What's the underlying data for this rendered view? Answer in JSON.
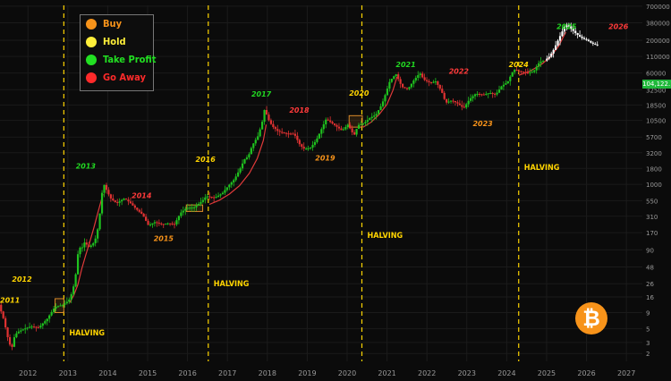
{
  "chart_data": {
    "type": "candlestick",
    "scale": "log",
    "xlim": [
      2011.3,
      2027.4
    ],
    "ylim": [
      1.5,
      720000
    ],
    "x_ticks": [
      "2012",
      "2013",
      "2014",
      "2015",
      "2016",
      "2017",
      "2018",
      "2019",
      "2020",
      "2021",
      "2022",
      "2023",
      "2024",
      "2025",
      "2026",
      "2027"
    ],
    "y_ticks": [
      "700000",
      "380000",
      "200000",
      "110000",
      "60000",
      "32500",
      "18500",
      "10500",
      "5700",
      "3200",
      "1800",
      "1000",
      "550",
      "310",
      "170",
      "90",
      "48",
      "26",
      "16",
      "9",
      "5",
      "3",
      "2"
    ],
    "last_price_label": "104,122.18",
    "halvings": [
      {
        "date": 2012.9,
        "label": "HALVING"
      },
      {
        "date": 2016.52,
        "label": "HALVING"
      },
      {
        "date": 2020.37,
        "label": "HALVING"
      },
      {
        "date": 2024.3,
        "label": "HALVING"
      }
    ],
    "year_markers": [
      {
        "text": "2011",
        "x": 2011.3,
        "y": 13,
        "color": "#ffd400"
      },
      {
        "text": "2012",
        "x": 2011.6,
        "y": 28,
        "color": "#ffd400"
      },
      {
        "text": "2013",
        "x": 2013.2,
        "y": 1800,
        "color": "#22d822"
      },
      {
        "text": "2014",
        "x": 2014.6,
        "y": 600,
        "color": "#ff3a3a"
      },
      {
        "text": "2015",
        "x": 2015.15,
        "y": 125,
        "color": "#f7931a"
      },
      {
        "text": "2016",
        "x": 2016.2,
        "y": 2300,
        "color": "#ffd400"
      },
      {
        "text": "2017",
        "x": 2017.6,
        "y": 25000,
        "color": "#22d822"
      },
      {
        "text": "2018",
        "x": 2018.55,
        "y": 14000,
        "color": "#ff3a3a"
      },
      {
        "text": "2019",
        "x": 2019.2,
        "y": 2400,
        "color": "#f7931a"
      },
      {
        "text": "2020",
        "x": 2020.05,
        "y": 26000,
        "color": "#ffd400"
      },
      {
        "text": "2021",
        "x": 2021.22,
        "y": 75000,
        "color": "#22d822"
      },
      {
        "text": "2022",
        "x": 2022.55,
        "y": 58000,
        "color": "#ff3a3a"
      },
      {
        "text": "2023",
        "x": 2023.15,
        "y": 8500,
        "color": "#f7931a"
      },
      {
        "text": "2024",
        "x": 2024.05,
        "y": 75000,
        "color": "#ffd400"
      },
      {
        "text": "2025",
        "x": 2025.25,
        "y": 300000,
        "color": "#22d822"
      },
      {
        "text": "2026",
        "x": 2026.55,
        "y": 300000,
        "color": "#ff3a3a"
      }
    ],
    "price_path": [
      [
        2011.3,
        12
      ],
      [
        2011.42,
        7
      ],
      [
        2011.55,
        3
      ],
      [
        2011.62,
        2.4
      ],
      [
        2011.7,
        4
      ],
      [
        2011.8,
        4.5
      ],
      [
        2011.95,
        5
      ],
      [
        2012.1,
        5.4
      ],
      [
        2012.3,
        5.2
      ],
      [
        2012.5,
        7
      ],
      [
        2012.7,
        11
      ],
      [
        2012.9,
        12
      ],
      [
        2013.05,
        14
      ],
      [
        2013.15,
        20
      ],
      [
        2013.25,
        45
      ],
      [
        2013.3,
        110
      ],
      [
        2013.36,
        90
      ],
      [
        2013.45,
        120
      ],
      [
        2013.55,
        100
      ],
      [
        2013.65,
        110
      ],
      [
        2013.75,
        150
      ],
      [
        2013.82,
        300
      ],
      [
        2013.9,
        900
      ],
      [
        2013.95,
        1000
      ],
      [
        2014.0,
        800
      ],
      [
        2014.1,
        600
      ],
      [
        2014.25,
        500
      ],
      [
        2014.45,
        600
      ],
      [
        2014.6,
        500
      ],
      [
        2014.75,
        400
      ],
      [
        2014.9,
        330
      ],
      [
        2015.05,
        220
      ],
      [
        2015.2,
        250
      ],
      [
        2015.4,
        230
      ],
      [
        2015.55,
        240
      ],
      [
        2015.7,
        230
      ],
      [
        2015.85,
        350
      ],
      [
        2016.0,
        420
      ],
      [
        2016.2,
        430
      ],
      [
        2016.4,
        550
      ],
      [
        2016.5,
        650
      ],
      [
        2016.7,
        610
      ],
      [
        2016.9,
        720
      ],
      [
        2017.05,
        950
      ],
      [
        2017.2,
        1200
      ],
      [
        2017.35,
        1800
      ],
      [
        2017.45,
        2500
      ],
      [
        2017.55,
        2800
      ],
      [
        2017.65,
        4200
      ],
      [
        2017.8,
        6000
      ],
      [
        2017.9,
        10000
      ],
      [
        2017.96,
        16000
      ],
      [
        2018.05,
        11000
      ],
      [
        2018.15,
        8500
      ],
      [
        2018.3,
        7000
      ],
      [
        2018.5,
        6500
      ],
      [
        2018.7,
        6400
      ],
      [
        2018.85,
        4200
      ],
      [
        2018.95,
        3700
      ],
      [
        2019.1,
        3800
      ],
      [
        2019.25,
        5000
      ],
      [
        2019.4,
        8000
      ],
      [
        2019.5,
        11000
      ],
      [
        2019.6,
        10000
      ],
      [
        2019.75,
        8500
      ],
      [
        2019.9,
        7200
      ],
      [
        2020.05,
        9000
      ],
      [
        2020.2,
        6000
      ],
      [
        2020.3,
        8800
      ],
      [
        2020.45,
        9500
      ],
      [
        2020.6,
        11500
      ],
      [
        2020.75,
        13000
      ],
      [
        2020.9,
        19000
      ],
      [
        2021.0,
        29000
      ],
      [
        2021.1,
        45000
      ],
      [
        2021.25,
        58000
      ],
      [
        2021.4,
        36000
      ],
      [
        2021.55,
        33000
      ],
      [
        2021.7,
        46000
      ],
      [
        2021.85,
        60000
      ],
      [
        2021.95,
        47000
      ],
      [
        2022.1,
        42000
      ],
      [
        2022.25,
        44000
      ],
      [
        2022.4,
        30000
      ],
      [
        2022.5,
        20000
      ],
      [
        2022.65,
        22000
      ],
      [
        2022.8,
        19500
      ],
      [
        2022.95,
        16500
      ],
      [
        2023.1,
        23000
      ],
      [
        2023.25,
        28000
      ],
      [
        2023.45,
        27000
      ],
      [
        2023.6,
        29000
      ],
      [
        2023.75,
        27000
      ],
      [
        2023.9,
        37000
      ],
      [
        2024.05,
        43000
      ],
      [
        2024.2,
        68000
      ],
      [
        2024.35,
        64000
      ],
      [
        2024.55,
        60000
      ],
      [
        2024.7,
        63000
      ],
      [
        2024.85,
        90000
      ],
      [
        2024.98,
        95000
      ]
    ],
    "projection_path": [
      [
        2024.98,
        95000
      ],
      [
        2025.1,
        110000
      ],
      [
        2025.2,
        140000
      ],
      [
        2025.3,
        190000
      ],
      [
        2025.4,
        260000
      ],
      [
        2025.48,
        330000
      ],
      [
        2025.55,
        350000
      ],
      [
        2025.65,
        300000
      ],
      [
        2025.75,
        260000
      ],
      [
        2025.85,
        230000
      ],
      [
        2025.95,
        210000
      ],
      [
        2026.05,
        200000
      ],
      [
        2026.15,
        180000
      ],
      [
        2026.25,
        170000
      ],
      [
        2026.35,
        160000
      ]
    ],
    "support_curves": [
      [
        [
          2013.05,
          13
        ],
        [
          2013.15,
          17
        ],
        [
          2013.25,
          25
        ],
        [
          2013.35,
          45
        ],
        [
          2013.45,
          75
        ],
        [
          2013.55,
          120
        ],
        [
          2013.65,
          200
        ],
        [
          2013.75,
          350
        ],
        [
          2013.88,
          700
        ]
      ],
      [
        [
          2016.55,
          480
        ],
        [
          2016.8,
          560
        ],
        [
          2017.05,
          700
        ],
        [
          2017.3,
          950
        ],
        [
          2017.55,
          1500
        ],
        [
          2017.75,
          2600
        ],
        [
          2017.9,
          5000
        ],
        [
          2017.97,
          9000
        ]
      ],
      [
        [
          2020.4,
          8200
        ],
        [
          2020.6,
          9800
        ],
        [
          2020.8,
          13000
        ],
        [
          2021.0,
          19000
        ],
        [
          2021.15,
          32000
        ],
        [
          2021.25,
          52000
        ]
      ],
      [
        [
          2024.3,
          55000
        ],
        [
          2024.6,
          65000
        ],
        [
          2024.9,
          85000
        ],
        [
          2025.1,
          110000
        ],
        [
          2025.3,
          160000
        ],
        [
          2025.48,
          270000
        ]
      ]
    ],
    "highlight_boxes": [
      {
        "x0": 2012.68,
        "x1": 2012.9,
        "y0": 9,
        "y1": 15
      },
      {
        "x0": 2015.97,
        "x1": 2016.38,
        "y0": 370,
        "y1": 470
      },
      {
        "x0": 2020.05,
        "x1": 2020.38,
        "y0": 8200,
        "y1": 12500
      }
    ]
  },
  "legend": [
    {
      "label": "Buy",
      "color": "#f7931a"
    },
    {
      "label": "Hold",
      "color": "#ffef3a"
    },
    {
      "label": "Take Profit",
      "color": "#22e022"
    },
    {
      "label": "Go Away",
      "color": "#ff2a2a"
    }
  ],
  "colors": {
    "up": "#1fc21f",
    "down": "#e03232",
    "projection": "#ffffff",
    "curve": "#e03a3a",
    "halving": "#ffd400",
    "grid": "#1b1b1b",
    "axis_text": "#9a9a9a"
  },
  "icon": "bitcoin-logo-icon"
}
